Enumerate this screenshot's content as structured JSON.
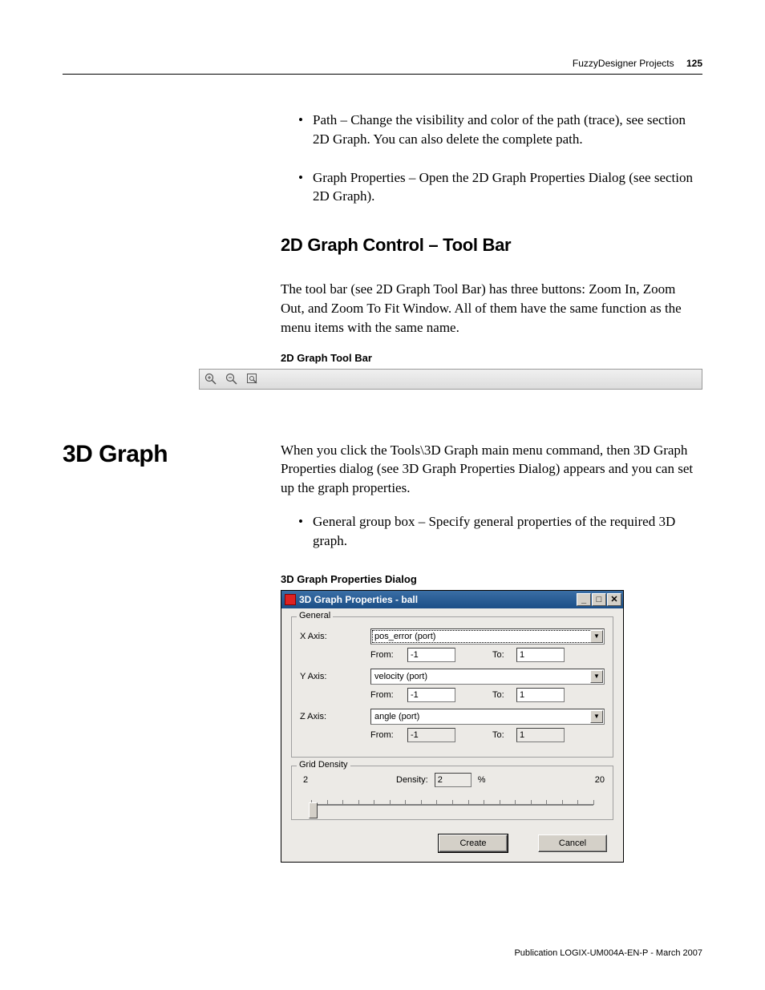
{
  "header": {
    "title": "FuzzyDesigner Projects",
    "page_number": "125"
  },
  "top_bullets": [
    "Path – Change the visibility and color of the path (trace), see section 2D Graph. You can also delete the complete path.",
    "Graph Properties – Open the 2D Graph Properties Dialog (see section 2D Graph)."
  ],
  "section_2d": {
    "heading": "2D Graph Control – Tool Bar",
    "para": "The tool bar (see 2D Graph Tool Bar) has three buttons: Zoom In, Zoom Out, and Zoom To Fit Window. All of them have the same function as the menu items with the same name.",
    "caption": "2D Graph Tool Bar"
  },
  "section_3d": {
    "title": "3D Graph",
    "para": "When you click the Tools\\3D Graph main menu command, then 3D Graph Properties dialog (see 3D Graph Properties Dialog) appears and you can set up the graph properties.",
    "bullet": "General group box – Specify general properties of the required 3D graph.",
    "caption": "3D Graph Properties Dialog"
  },
  "dialog": {
    "title": "3D Graph Properties - ball",
    "general": {
      "legend": "General",
      "x_label": "X Axis:",
      "x_value": "pos_error (port)",
      "y_label": "Y Axis:",
      "y_value": "velocity (port)",
      "z_label": "Z Axis:",
      "z_value": "angle (port)",
      "from_label": "From:",
      "to_label": "To:",
      "x_from": "-1",
      "x_to": "1",
      "y_from": "-1",
      "y_to": "1",
      "z_from": "-1",
      "z_to": "1",
      "z_readonly": true
    },
    "grid": {
      "legend": "Grid Density",
      "min": "2",
      "max": "20",
      "density_label": "Density:",
      "density_value": "2",
      "pct": "%",
      "ticks": 19
    },
    "buttons": {
      "create": "Create",
      "cancel": "Cancel"
    }
  },
  "footer": "Publication LOGIX-UM004A-EN-P - March 2007"
}
